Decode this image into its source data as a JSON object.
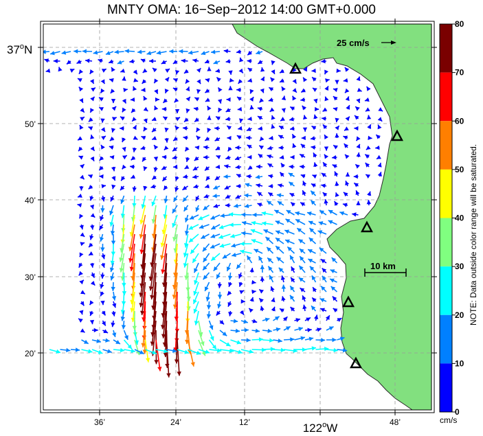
{
  "title": "MNTY OMA: 16−Sep−2012 14:00 GMT+0.000",
  "colors": {
    "land": "#82e07f",
    "coast": "#2a2a2a",
    "grid": "#9a9a9a",
    "frame": "#000000"
  },
  "lat_labels": [
    {
      "deg": "37",
      "sup": "o",
      "hemi": "N"
    },
    {
      "text": "50’"
    },
    {
      "text": "40’"
    },
    {
      "text": "30’"
    },
    {
      "text": "20’"
    }
  ],
  "lon_labels": [
    {
      "text": "36’"
    },
    {
      "text": "24’"
    },
    {
      "text": "12’"
    },
    {
      "deg": "122",
      "sup": "o",
      "hemi": "W"
    },
    {
      "text": "48’"
    }
  ],
  "reference_vector": {
    "label": "25 cm/s"
  },
  "scale_bar": {
    "label": "10 km"
  },
  "stations": [
    "triangle-1",
    "triangle-2",
    "triangle-3",
    "triangle-4",
    "triangle-5"
  ],
  "colorbar": {
    "unit": "cm/s",
    "note": "NOTE: Data outside color range will be saturated.",
    "ticks": [
      "80",
      "70",
      "60",
      "50",
      "40",
      "30",
      "20",
      "10",
      "0"
    ],
    "colors": [
      "#7a0000",
      "#ff0000",
      "#ff7f00",
      "#ffff00",
      "#80ff80",
      "#00ffff",
      "#0080ff",
      "#0000ff"
    ]
  },
  "map_data": {
    "type": "vector-field",
    "variable": "surface current speed",
    "units": "cm/s",
    "color_range": [
      0,
      80
    ],
    "regions": [
      {
        "area": "northern offshore edge (~37°N)",
        "direction": "westward",
        "speed_range": [
          15,
          30
        ]
      },
      {
        "area": "northern bay interior",
        "direction": "weak, variable",
        "speed_range": [
          0,
          10
        ]
      },
      {
        "area": "western jet (~122°30’W, 36°20– 40’N)",
        "direction": "southward / south-southwest",
        "speed_range": [
          40,
          80
        ]
      },
      {
        "area": "central and southern bay",
        "direction": "westward / cyclonic",
        "speed_range": [
          5,
          20
        ]
      },
      {
        "area": "southern edge (~36°20’N)",
        "direction": "eastward",
        "speed_range": [
          15,
          25
        ]
      }
    ]
  }
}
